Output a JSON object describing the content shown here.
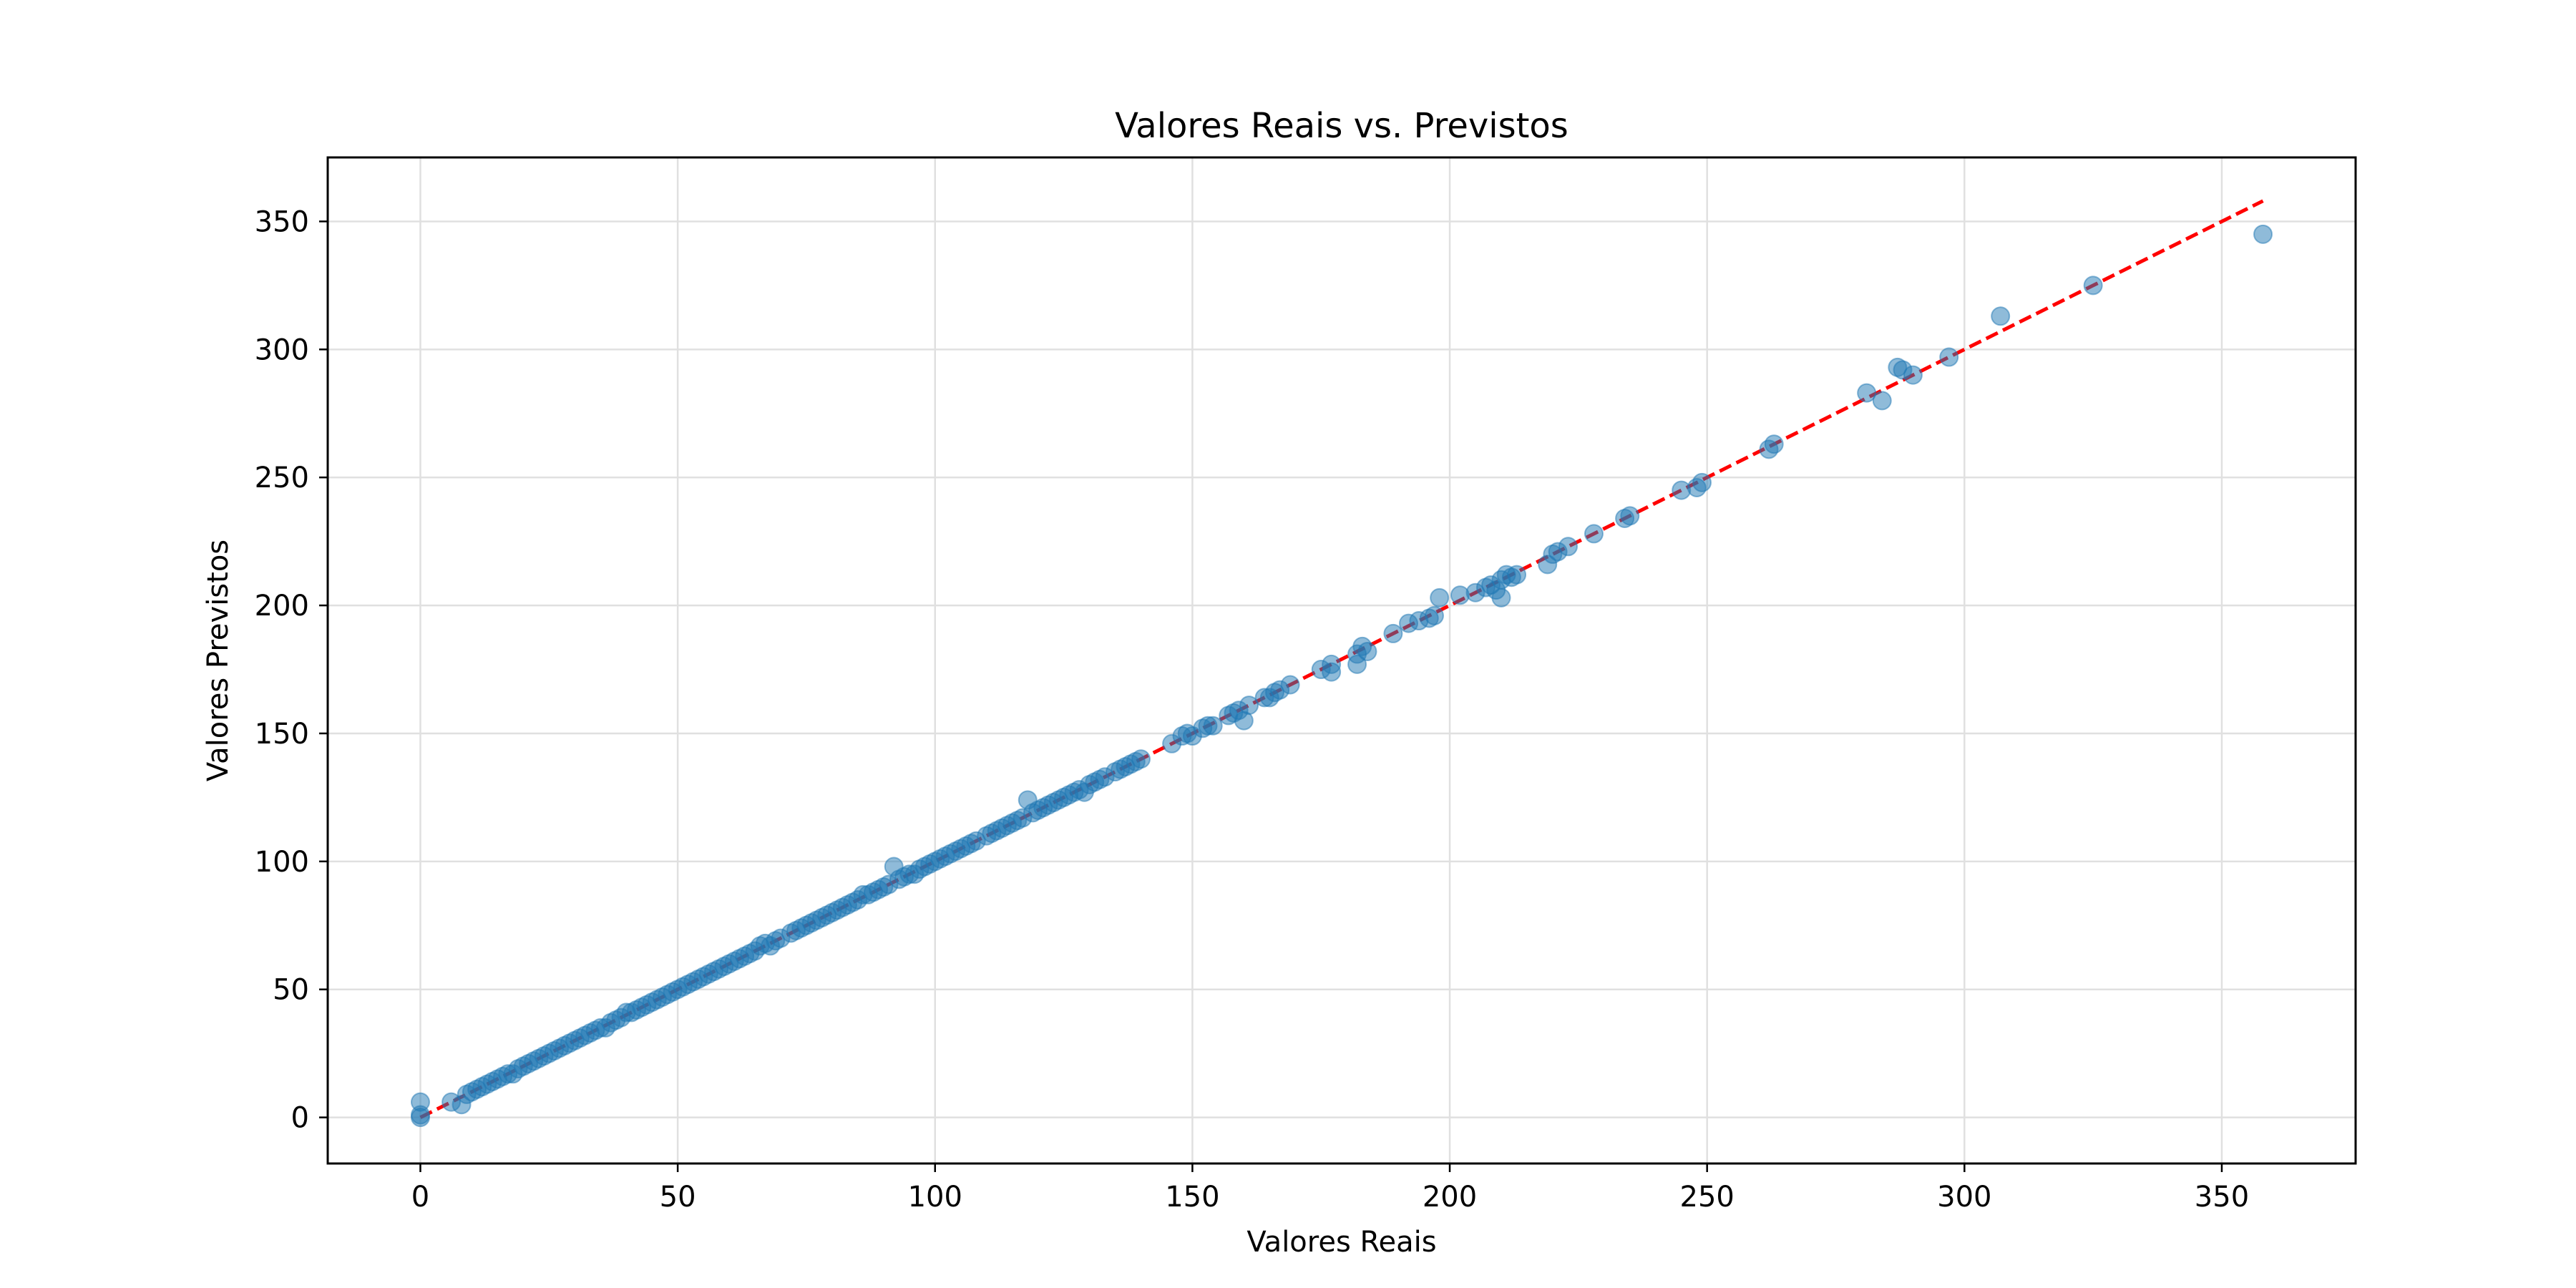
{
  "chart_data": {
    "type": "scatter",
    "title": "Valores Reais vs. Previstos",
    "xlabel": "Valores Reais",
    "ylabel": "Valores Previstos",
    "xlim": [
      -18,
      376
    ],
    "ylim": [
      -18,
      375
    ],
    "x_ticks": [
      0,
      50,
      100,
      150,
      200,
      250,
      300,
      350
    ],
    "y_ticks": [
      0,
      50,
      100,
      150,
      200,
      250,
      300,
      350
    ],
    "grid": true,
    "point_color": "#1f77b4",
    "point_alpha": 0.5,
    "reference_line": {
      "style": "dashed",
      "color": "#ff0000",
      "x": [
        0,
        358
      ],
      "y": [
        0,
        358
      ]
    },
    "series": [
      {
        "points": [
          [
            0,
            0
          ],
          [
            0,
            1
          ],
          [
            0,
            6
          ],
          [
            6,
            6
          ],
          [
            8,
            5
          ],
          [
            9,
            9
          ],
          [
            10,
            10
          ],
          [
            11,
            11
          ],
          [
            12,
            12
          ],
          [
            13,
            13
          ],
          [
            14,
            14
          ],
          [
            15,
            15
          ],
          [
            16,
            16
          ],
          [
            17,
            17
          ],
          [
            18,
            17
          ],
          [
            19,
            19
          ],
          [
            20,
            20
          ],
          [
            21,
            21
          ],
          [
            22,
            22
          ],
          [
            23,
            23
          ],
          [
            24,
            24
          ],
          [
            25,
            25
          ],
          [
            26,
            26
          ],
          [
            27,
            27
          ],
          [
            28,
            28
          ],
          [
            29,
            29
          ],
          [
            30,
            30
          ],
          [
            31,
            31
          ],
          [
            32,
            32
          ],
          [
            33,
            33
          ],
          [
            34,
            34
          ],
          [
            35,
            35
          ],
          [
            36,
            35
          ],
          [
            37,
            37
          ],
          [
            38,
            38
          ],
          [
            39,
            39
          ],
          [
            40,
            41
          ],
          [
            41,
            41
          ],
          [
            42,
            42
          ],
          [
            43,
            43
          ],
          [
            44,
            44
          ],
          [
            45,
            45
          ],
          [
            46,
            46
          ],
          [
            47,
            47
          ],
          [
            48,
            48
          ],
          [
            49,
            49
          ],
          [
            50,
            50
          ],
          [
            51,
            51
          ],
          [
            52,
            52
          ],
          [
            53,
            53
          ],
          [
            54,
            54
          ],
          [
            55,
            55
          ],
          [
            56,
            56
          ],
          [
            57,
            57
          ],
          [
            58,
            58
          ],
          [
            59,
            59
          ],
          [
            60,
            60
          ],
          [
            61,
            61
          ],
          [
            62,
            62
          ],
          [
            63,
            63
          ],
          [
            64,
            64
          ],
          [
            65,
            65
          ],
          [
            66,
            67
          ],
          [
            67,
            68
          ],
          [
            68,
            67
          ],
          [
            69,
            69
          ],
          [
            70,
            70
          ],
          [
            72,
            72
          ],
          [
            73,
            73
          ],
          [
            74,
            74
          ],
          [
            75,
            75
          ],
          [
            76,
            76
          ],
          [
            77,
            77
          ],
          [
            78,
            78
          ],
          [
            79,
            79
          ],
          [
            80,
            80
          ],
          [
            81,
            81
          ],
          [
            82,
            82
          ],
          [
            83,
            83
          ],
          [
            84,
            84
          ],
          [
            85,
            85
          ],
          [
            86,
            87
          ],
          [
            87,
            87
          ],
          [
            88,
            88
          ],
          [
            89,
            89
          ],
          [
            90,
            90
          ],
          [
            91,
            91
          ],
          [
            92,
            98
          ],
          [
            93,
            93
          ],
          [
            94,
            94
          ],
          [
            95,
            95
          ],
          [
            96,
            95
          ],
          [
            97,
            97
          ],
          [
            98,
            98
          ],
          [
            99,
            99
          ],
          [
            100,
            100
          ],
          [
            101,
            101
          ],
          [
            102,
            102
          ],
          [
            103,
            103
          ],
          [
            104,
            104
          ],
          [
            105,
            105
          ],
          [
            106,
            106
          ],
          [
            107,
            107
          ],
          [
            108,
            108
          ],
          [
            110,
            110
          ],
          [
            111,
            111
          ],
          [
            112,
            112
          ],
          [
            113,
            113
          ],
          [
            114,
            114
          ],
          [
            115,
            115
          ],
          [
            116,
            116
          ],
          [
            117,
            117
          ],
          [
            118,
            124
          ],
          [
            119,
            119
          ],
          [
            120,
            120
          ],
          [
            121,
            121
          ],
          [
            122,
            122
          ],
          [
            123,
            123
          ],
          [
            124,
            124
          ],
          [
            125,
            125
          ],
          [
            126,
            126
          ],
          [
            127,
            127
          ],
          [
            128,
            128
          ],
          [
            129,
            127
          ],
          [
            130,
            130
          ],
          [
            131,
            131
          ],
          [
            132,
            132
          ],
          [
            133,
            133
          ],
          [
            135,
            135
          ],
          [
            136,
            136
          ],
          [
            137,
            137
          ],
          [
            138,
            138
          ],
          [
            139,
            139
          ],
          [
            140,
            140
          ],
          [
            146,
            146
          ],
          [
            148,
            149
          ],
          [
            149,
            150
          ],
          [
            150,
            149
          ],
          [
            152,
            152
          ],
          [
            153,
            153
          ],
          [
            154,
            153
          ],
          [
            157,
            157
          ],
          [
            158,
            158
          ],
          [
            159,
            159
          ],
          [
            160,
            155
          ],
          [
            161,
            161
          ],
          [
            164,
            164
          ],
          [
            165,
            164
          ],
          [
            166,
            166
          ],
          [
            167,
            167
          ],
          [
            169,
            169
          ],
          [
            175,
            175
          ],
          [
            177,
            177
          ],
          [
            177,
            174
          ],
          [
            182,
            181
          ],
          [
            182,
            177
          ],
          [
            183,
            184
          ],
          [
            184,
            182
          ],
          [
            189,
            189
          ],
          [
            192,
            193
          ],
          [
            194,
            194
          ],
          [
            196,
            195
          ],
          [
            197,
            196
          ],
          [
            198,
            203
          ],
          [
            202,
            204
          ],
          [
            205,
            205
          ],
          [
            207,
            207
          ],
          [
            208,
            208
          ],
          [
            209,
            206
          ],
          [
            210,
            203
          ],
          [
            210,
            210
          ],
          [
            211,
            212
          ],
          [
            212,
            211
          ],
          [
            213,
            212
          ],
          [
            219,
            216
          ],
          [
            220,
            220
          ],
          [
            221,
            221
          ],
          [
            223,
            223
          ],
          [
            228,
            228
          ],
          [
            234,
            234
          ],
          [
            235,
            235
          ],
          [
            245,
            245
          ],
          [
            248,
            246
          ],
          [
            249,
            248
          ],
          [
            262,
            261
          ],
          [
            263,
            263
          ],
          [
            281,
            283
          ],
          [
            284,
            280
          ],
          [
            287,
            293
          ],
          [
            288,
            292
          ],
          [
            290,
            290
          ],
          [
            297,
            297
          ],
          [
            307,
            313
          ],
          [
            325,
            325
          ],
          [
            358,
            345
          ]
        ]
      }
    ]
  }
}
